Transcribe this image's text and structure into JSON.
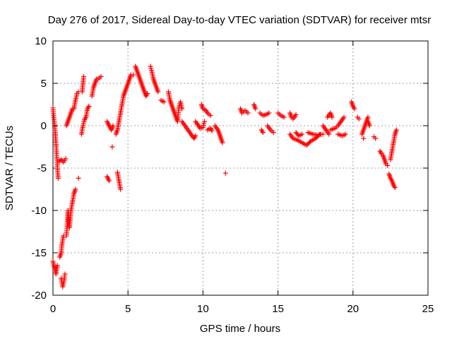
{
  "chart_data": {
    "type": "scatter",
    "title": "Day 276 of 2017, Sidereal Day-to-day VTEC variation (SDTVAR) for receiver mtsr",
    "xlabel": "GPS time / hours",
    "ylabel": "SDTVAR / TECUs",
    "xlim": [
      0,
      25
    ],
    "ylim": [
      -20,
      10
    ],
    "xticks": [
      0,
      5,
      10,
      15,
      20,
      25
    ],
    "yticks": [
      -20,
      -15,
      -10,
      -5,
      0,
      5,
      10
    ],
    "grid": true,
    "marker": "+",
    "color": "#ff0000",
    "series": [
      {
        "name": "SDTVAR",
        "segments": [
          [
            [
              0.0,
              2.1
            ],
            [
              0.05,
              1.2
            ],
            [
              0.1,
              0.3
            ],
            [
              0.15,
              -0.8
            ],
            [
              0.2,
              -2.0
            ],
            [
              0.25,
              -3.5
            ],
            [
              0.3,
              -5.0
            ],
            [
              0.35,
              -6.2
            ]
          ],
          [
            [
              0.0,
              -16.0
            ],
            [
              0.1,
              -16.8
            ],
            [
              0.2,
              -17.5
            ],
            [
              0.3,
              -16.5
            ]
          ],
          [
            [
              0.4,
              -4.2
            ],
            [
              0.55,
              -4.0
            ],
            [
              0.7,
              -4.3
            ],
            [
              0.85,
              -3.9
            ]
          ],
          [
            [
              0.45,
              -15.5
            ],
            [
              0.55,
              -15.0
            ],
            [
              0.6,
              -14.0
            ],
            [
              0.7,
              -13.0
            ]
          ],
          [
            [
              0.55,
              -18.0
            ],
            [
              0.65,
              -19.0
            ],
            [
              0.75,
              -18.2
            ],
            [
              0.8,
              -17.5
            ]
          ],
          [
            [
              0.9,
              -13.0
            ],
            [
              0.95,
              -11.5
            ],
            [
              1.0,
              -10.0
            ],
            [
              1.1,
              -12.0
            ],
            [
              1.15,
              -11.0
            ],
            [
              1.2,
              -10.0
            ],
            [
              1.3,
              -9.0
            ],
            [
              1.4,
              -8.0
            ],
            [
              1.5,
              -7.5
            ]
          ],
          [
            [
              0.9,
              0.0
            ],
            [
              1.0,
              0.5
            ],
            [
              1.1,
              1.0
            ],
            [
              1.2,
              1.5
            ],
            [
              1.3,
              2.0
            ]
          ],
          [
            [
              1.4,
              2.0
            ],
            [
              1.5,
              3.0
            ],
            [
              1.6,
              3.8
            ],
            [
              1.7,
              4.0
            ]
          ],
          [
            [
              1.7,
              -6.2
            ]
          ],
          [
            [
              1.9,
              -1.0
            ],
            [
              2.0,
              0.0
            ],
            [
              2.1,
              0.7
            ],
            [
              2.2,
              1.0
            ],
            [
              2.3,
              2.0
            ],
            [
              2.4,
              2.3
            ]
          ],
          [
            [
              1.95,
              4.0
            ],
            [
              2.0,
              5.0
            ],
            [
              2.05,
              5.8
            ]
          ],
          [
            [
              2.6,
              3.5
            ],
            [
              2.7,
              4.5
            ],
            [
              2.8,
              5.0
            ],
            [
              2.9,
              5.5
            ]
          ],
          [
            [
              3.0,
              5.5
            ],
            [
              3.2,
              5.8
            ]
          ],
          [
            [
              3.6,
              -6.0
            ],
            [
              3.75,
              -6.5
            ]
          ],
          [
            [
              3.6,
              0.5
            ],
            [
              3.75,
              0.0
            ],
            [
              3.9,
              -0.5
            ],
            [
              4.0,
              0.0
            ]
          ],
          [
            [
              3.95,
              -2.5
            ]
          ],
          [
            [
              4.2,
              -1.0
            ],
            [
              4.3,
              -0.5
            ],
            [
              4.4,
              0.5
            ],
            [
              4.5,
              1.5
            ],
            [
              4.6,
              2.5
            ],
            [
              4.7,
              3.5
            ],
            [
              4.8,
              4.0
            ],
            [
              4.9,
              4.5
            ],
            [
              5.0,
              5.0
            ],
            [
              5.1,
              5.5
            ],
            [
              5.2,
              6.0
            ],
            [
              5.35,
              6.0
            ]
          ],
          [
            [
              4.3,
              -5.5
            ],
            [
              4.4,
              -6.5
            ],
            [
              4.5,
              -7.5
            ]
          ],
          [
            [
              5.5,
              7.0
            ],
            [
              5.6,
              6.5
            ],
            [
              5.7,
              6.0
            ],
            [
              5.8,
              5.5
            ],
            [
              5.9,
              5.0
            ],
            [
              6.0,
              4.5
            ],
            [
              6.1,
              4.0
            ],
            [
              6.2,
              3.5
            ],
            [
              6.3,
              3.8
            ]
          ],
          [
            [
              6.5,
              7.0
            ],
            [
              6.6,
              6.3
            ],
            [
              6.7,
              5.5
            ],
            [
              6.8,
              5.0
            ],
            [
              6.9,
              4.5
            ],
            [
              7.0,
              4.0
            ]
          ],
          [
            [
              7.2,
              3.0
            ],
            [
              7.4,
              2.8
            ]
          ],
          [
            [
              7.7,
              4.0
            ],
            [
              7.8,
              3.0
            ],
            [
              7.9,
              2.5
            ],
            [
              8.0,
              2.0
            ],
            [
              8.1,
              1.5
            ],
            [
              8.2,
              1.0
            ],
            [
              8.3,
              0.5
            ],
            [
              8.4,
              2.2
            ],
            [
              8.5,
              2.8
            ],
            [
              8.6,
              2.0
            ]
          ],
          [
            [
              8.6,
              0.5
            ],
            [
              8.8,
              0.0
            ],
            [
              9.0,
              -0.5
            ],
            [
              9.2,
              -1.0
            ],
            [
              9.4,
              -1.5
            ],
            [
              9.5,
              -1.2
            ]
          ],
          [
            [
              9.5,
              0.5
            ],
            [
              9.7,
              0.0
            ],
            [
              9.8,
              -0.3
            ],
            [
              10.0,
              -0.2
            ],
            [
              10.1,
              0.5
            ]
          ],
          [
            [
              9.9,
              2.5
            ],
            [
              10.0,
              2.0
            ],
            [
              10.2,
              1.8
            ],
            [
              10.3,
              1.5
            ],
            [
              10.5,
              1.2
            ]
          ],
          [
            [
              10.3,
              -0.5
            ],
            [
              10.5,
              -0.3
            ],
            [
              10.6,
              -0.6
            ]
          ],
          [
            [
              10.8,
              0.0
            ],
            [
              11.0,
              -0.5
            ],
            [
              11.1,
              -1.0
            ],
            [
              11.2,
              -1.5
            ],
            [
              11.3,
              -2.0
            ]
          ],
          [
            [
              11.5,
              -5.6
            ]
          ],
          [
            [
              12.5,
              2.0
            ],
            [
              12.6,
              1.5
            ],
            [
              12.8,
              1.8
            ],
            [
              13.0,
              1.5
            ]
          ],
          [
            [
              13.4,
              2.5
            ],
            [
              13.5,
              2.0
            ]
          ],
          [
            [
              13.8,
              1.5
            ],
            [
              14.0,
              1.2
            ],
            [
              14.2,
              1.3
            ],
            [
              14.4,
              1.5
            ]
          ],
          [
            [
              13.9,
              -0.5
            ],
            [
              14.0,
              -0.8
            ]
          ],
          [
            [
              14.3,
              0.0
            ],
            [
              14.5,
              -0.5
            ],
            [
              14.7,
              -0.8
            ]
          ],
          [
            [
              15.0,
              1.5
            ],
            [
              15.2,
              1.2
            ],
            [
              15.4,
              1.0
            ]
          ],
          [
            [
              15.8,
              1.5
            ],
            [
              15.9,
              1.0
            ],
            [
              16.0,
              0.8
            ],
            [
              16.2,
              1.3
            ]
          ],
          [
            [
              15.8,
              -1.0
            ],
            [
              16.0,
              -1.5
            ],
            [
              16.3,
              -1.7
            ],
            [
              16.6,
              -2.0
            ],
            [
              16.9,
              -2.3
            ],
            [
              17.2,
              -1.8
            ],
            [
              17.5,
              -1.5
            ],
            [
              17.8,
              -1.0
            ]
          ],
          [
            [
              16.2,
              -0.8
            ],
            [
              16.4,
              -1.2
            ],
            [
              16.6,
              -1.0
            ]
          ],
          [
            [
              17.0,
              -0.8
            ],
            [
              17.3,
              -1.0
            ],
            [
              17.6,
              -1.1
            ],
            [
              18.0,
              -1.0
            ]
          ],
          [
            [
              18.0,
              0.0
            ],
            [
              18.2,
              -0.5
            ],
            [
              18.4,
              -1.0
            ]
          ],
          [
            [
              18.3,
              1.0
            ],
            [
              18.5,
              1.5
            ],
            [
              18.6,
              1.0
            ]
          ],
          [
            [
              18.5,
              -0.5
            ],
            [
              18.8,
              -0.3
            ],
            [
              19.0,
              0.0
            ],
            [
              19.2,
              0.5
            ],
            [
              19.4,
              1.0
            ]
          ],
          [
            [
              19.0,
              -1.0
            ],
            [
              19.3,
              -1.2
            ],
            [
              19.5,
              -1.0
            ]
          ],
          [
            [
              19.9,
              2.8
            ],
            [
              20.0,
              2.3
            ],
            [
              20.1,
              2.0
            ]
          ],
          [
            [
              20.3,
              1.0
            ],
            [
              20.4,
              0.8
            ]
          ],
          [
            [
              20.6,
              -1.0
            ],
            [
              20.7,
              -0.5
            ],
            [
              20.8,
              0.0
            ],
            [
              20.9,
              0.5
            ],
            [
              21.0,
              1.0
            ]
          ],
          [
            [
              20.7,
              -1.5
            ]
          ],
          [
            [
              21.0,
              0.5
            ],
            [
              21.1,
              0.0
            ]
          ],
          [
            [
              21.4,
              -1.3
            ],
            [
              21.5,
              -1.5
            ]
          ],
          [
            [
              21.8,
              -3.0
            ],
            [
              21.9,
              -3.3
            ],
            [
              22.0,
              -3.5
            ],
            [
              22.1,
              -4.0
            ],
            [
              22.2,
              -4.5
            ],
            [
              22.3,
              -4.7
            ]
          ],
          [
            [
              22.4,
              -5.7
            ],
            [
              22.5,
              -6.2
            ],
            [
              22.6,
              -6.5
            ],
            [
              22.7,
              -7.0
            ],
            [
              22.8,
              -7.3
            ]
          ],
          [
            [
              22.5,
              -4.0
            ],
            [
              22.6,
              -3.0
            ],
            [
              22.7,
              -2.0
            ],
            [
              22.8,
              -1.0
            ],
            [
              22.9,
              -0.5
            ]
          ]
        ]
      }
    ]
  }
}
